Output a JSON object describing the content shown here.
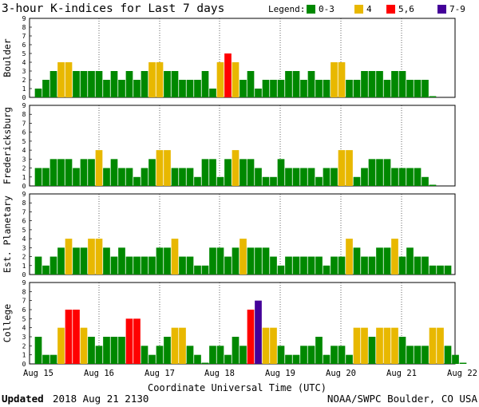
{
  "title": "3-hour K-indices for Last 7 days",
  "legend": {
    "label": "Legend:",
    "items": [
      {
        "label": "0-3",
        "color": "#008800"
      },
      {
        "label": "4",
        "color": "#e8b800"
      },
      {
        "label": "5,6",
        "color": "#ff0000"
      },
      {
        "label": "7-9",
        "color": "#440099"
      }
    ]
  },
  "chart_data": {
    "type": "bar",
    "title": "3-hour K-indices for Last 7 days",
    "xlabel": "Coordinate Universal Time (UTC)",
    "x_ticks": [
      "Aug 15",
      "Aug 16",
      "Aug 17",
      "Aug 18",
      "Aug 19",
      "Aug 20",
      "Aug 21",
      "Aug 22"
    ],
    "ylim": [
      0,
      9
    ],
    "y_ticks": [
      0,
      1,
      2,
      3,
      4,
      5,
      6,
      7,
      8,
      9
    ],
    "bins_per_day": 8,
    "color_scale": [
      {
        "range": "0-3",
        "color": "#008800"
      },
      {
        "range": "4",
        "color": "#e8b800"
      },
      {
        "range": "5,6",
        "color": "#ff0000"
      },
      {
        "range": "7-9",
        "color": "#440099"
      }
    ],
    "series": [
      {
        "name": "Boulder",
        "values": [
          1,
          2,
          3,
          4,
          4,
          3,
          3,
          3,
          3,
          2,
          3,
          2,
          3,
          2,
          3,
          4,
          4,
          3,
          3,
          2,
          2,
          2,
          3,
          1,
          4,
          5,
          4,
          2,
          3,
          1,
          2,
          2,
          2,
          3,
          3,
          2,
          3,
          2,
          2,
          4,
          4,
          2,
          2,
          3,
          3,
          3,
          2,
          3,
          3,
          2,
          2,
          2,
          0
        ]
      },
      {
        "name": "Fredericksburg",
        "values": [
          2,
          2,
          3,
          3,
          3,
          2,
          3,
          3,
          4,
          2,
          3,
          2,
          2,
          1,
          2,
          3,
          4,
          4,
          2,
          2,
          2,
          1,
          3,
          3,
          1,
          3,
          4,
          3,
          3,
          2,
          1,
          1,
          3,
          2,
          2,
          2,
          2,
          1,
          2,
          2,
          4,
          4,
          1,
          2,
          3,
          3,
          3,
          2,
          2,
          2,
          2,
          1,
          0
        ]
      },
      {
        "name": "Est. Planetary",
        "values": [
          2,
          1,
          2,
          3,
          4,
          3,
          3,
          4,
          4,
          3,
          2,
          3,
          2,
          2,
          2,
          2,
          3,
          3,
          4,
          2,
          2,
          1,
          1,
          3,
          3,
          2,
          3,
          4,
          3,
          3,
          3,
          2,
          1,
          2,
          2,
          2,
          2,
          2,
          1,
          2,
          2,
          4,
          3,
          2,
          2,
          3,
          3,
          4,
          2,
          3,
          2,
          2,
          1,
          1,
          1
        ]
      },
      {
        "name": "College",
        "values": [
          3,
          1,
          1,
          4,
          6,
          6,
          4,
          3,
          2,
          3,
          3,
          3,
          5,
          5,
          2,
          1,
          2,
          3,
          4,
          4,
          2,
          1,
          0,
          2,
          2,
          1,
          3,
          2,
          6,
          7,
          4,
          4,
          2,
          1,
          1,
          2,
          2,
          3,
          1,
          2,
          2,
          1,
          4,
          4,
          3,
          4,
          4,
          4,
          3,
          2,
          2,
          2,
          4,
          4,
          2,
          1,
          0
        ]
      }
    ]
  },
  "footer": {
    "updated_label": "Updated",
    "updated_value": "2018 Aug 21 2130",
    "source": "NOAA/SWPC Boulder, CO USA"
  }
}
